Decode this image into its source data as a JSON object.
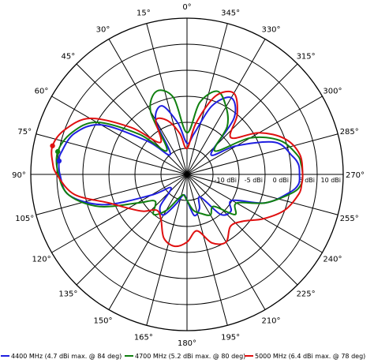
{
  "chart_data": {
    "type": "polar",
    "angle_direction": "counter-clockwise",
    "zero_position": "top",
    "angle_labels": [
      "0°",
      "15°",
      "30°",
      "45°",
      "60°",
      "75°",
      "90°",
      "105°",
      "120°",
      "135°",
      "150°",
      "165°",
      "180°",
      "195°",
      "210°",
      "225°",
      "240°",
      "255°",
      "270°",
      "285°",
      "300°",
      "315°",
      "330°",
      "345°"
    ],
    "radial_tick_labels": [
      "-10 dBi",
      "-5 dBi",
      "0 dBi",
      "5 dBi",
      "10 dBi"
    ],
    "radial_ticks": [
      -10,
      -5,
      0,
      5,
      10
    ],
    "r_range": [
      -20,
      10
    ],
    "grid": true,
    "legend_position": "bottom",
    "series": [
      {
        "name": "4400 MHz (4.7 dBi max. @ 84 deg)",
        "color": "#1f1fe0",
        "marker_angle": 84,
        "marker_value": 4.7,
        "points": [
          [
            0,
            -14
          ],
          [
            10,
            -10
          ],
          [
            20,
            -6
          ],
          [
            30,
            -8
          ],
          [
            40,
            -15
          ],
          [
            50,
            -10
          ],
          [
            60,
            -1
          ],
          [
            70,
            3
          ],
          [
            80,
            4.5
          ],
          [
            84,
            4.7
          ],
          [
            90,
            4.4
          ],
          [
            100,
            3
          ],
          [
            110,
            -3
          ],
          [
            120,
            -12
          ],
          [
            130,
            -16
          ],
          [
            140,
            -12
          ],
          [
            150,
            -11
          ],
          [
            160,
            -14
          ],
          [
            170,
            -16
          ],
          [
            180,
            -15
          ],
          [
            190,
            -12
          ],
          [
            200,
            -13
          ],
          [
            210,
            -15
          ],
          [
            220,
            -10
          ],
          [
            230,
            -9
          ],
          [
            240,
            -10
          ],
          [
            250,
            -4
          ],
          [
            260,
            0
          ],
          [
            265,
            1.5
          ],
          [
            270,
            1.6
          ],
          [
            275,
            1.5
          ],
          [
            280,
            0.5
          ],
          [
            290,
            -2
          ],
          [
            300,
            -9
          ],
          [
            310,
            -14
          ],
          [
            320,
            -6
          ],
          [
            330,
            -3
          ],
          [
            340,
            -6
          ],
          [
            350,
            -12
          ],
          [
            360,
            -14
          ]
        ]
      },
      {
        "name": "4700 MHz (5.2 dBi max. @ 80 deg)",
        "color": "#108010",
        "marker_angle": 80,
        "marker_value": 5.2,
        "points": [
          [
            0,
            -12
          ],
          [
            10,
            -5
          ],
          [
            20,
            -3
          ],
          [
            30,
            -6
          ],
          [
            40,
            -14
          ],
          [
            50,
            -8
          ],
          [
            60,
            0
          ],
          [
            70,
            3.5
          ],
          [
            80,
            5.2
          ],
          [
            90,
            4.7
          ],
          [
            100,
            3
          ],
          [
            110,
            -2
          ],
          [
            120,
            -9
          ],
          [
            130,
            -12
          ],
          [
            140,
            -10
          ],
          [
            150,
            -12
          ],
          [
            160,
            -15
          ],
          [
            170,
            -16
          ],
          [
            180,
            -15
          ],
          [
            190,
            -13
          ],
          [
            200,
            -12
          ],
          [
            210,
            -11
          ],
          [
            220,
            -12
          ],
          [
            230,
            -8
          ],
          [
            240,
            -9
          ],
          [
            250,
            -4
          ],
          [
            260,
            0.5
          ],
          [
            265,
            2
          ],
          [
            270,
            2.2
          ],
          [
            275,
            2
          ],
          [
            280,
            1.5
          ],
          [
            290,
            -1
          ],
          [
            300,
            -6
          ],
          [
            310,
            -13
          ],
          [
            320,
            -8
          ],
          [
            330,
            -5
          ],
          [
            340,
            -3
          ],
          [
            350,
            -6
          ],
          [
            360,
            -12
          ]
        ]
      },
      {
        "name": "5000 MHz (6.4 dBi max. @ 78 deg)",
        "color": "#e01010",
        "marker_angle": 78,
        "marker_value": 6.4,
        "points": [
          [
            0,
            -15
          ],
          [
            10,
            -12
          ],
          [
            20,
            -9
          ],
          [
            30,
            -8
          ],
          [
            40,
            -12
          ],
          [
            50,
            -6
          ],
          [
            60,
            1.5
          ],
          [
            70,
            5
          ],
          [
            78,
            6.4
          ],
          [
            85,
            5.9
          ],
          [
            90,
            5
          ],
          [
            100,
            2
          ],
          [
            110,
            -4
          ],
          [
            120,
            -7
          ],
          [
            130,
            -9
          ],
          [
            140,
            -11
          ],
          [
            150,
            -10
          ],
          [
            160,
            -7
          ],
          [
            170,
            -6
          ],
          [
            180,
            -7
          ],
          [
            190,
            -9
          ],
          [
            200,
            -6
          ],
          [
            210,
            -5
          ],
          [
            220,
            -7
          ],
          [
            230,
            -6
          ],
          [
            240,
            -3
          ],
          [
            250,
            0
          ],
          [
            260,
            1.8
          ],
          [
            265,
            2.1
          ],
          [
            270,
            2.2
          ],
          [
            280,
            2
          ],
          [
            290,
            0
          ],
          [
            300,
            -4
          ],
          [
            310,
            -9
          ],
          [
            320,
            -5
          ],
          [
            330,
            -2
          ],
          [
            340,
            -4
          ],
          [
            350,
            -10
          ],
          [
            360,
            -15
          ]
        ]
      }
    ]
  }
}
